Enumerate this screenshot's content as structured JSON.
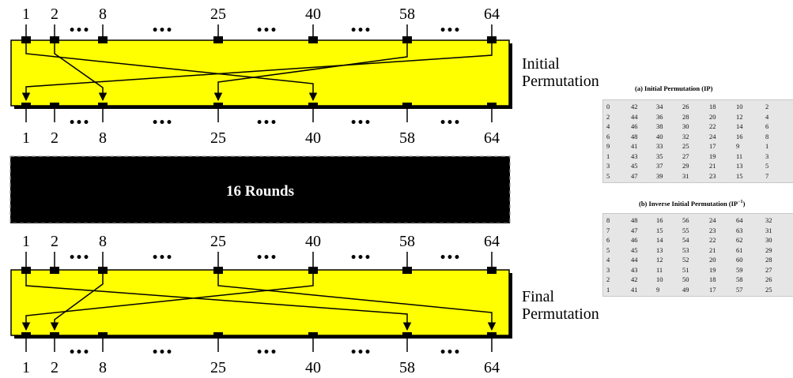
{
  "initial_block": {
    "top_positions": [
      "1",
      "2",
      "8",
      "25",
      "40",
      "58",
      "64"
    ],
    "bottom_positions": [
      "1",
      "2",
      "8",
      "25",
      "40",
      "58",
      "64"
    ],
    "label_line1": "Initial",
    "label_line2": "Permutation",
    "fill_color": "#ffff00"
  },
  "rounds_block": {
    "label": "16 Rounds",
    "fill_color": "#000000"
  },
  "final_block": {
    "top_positions": [
      "1",
      "2",
      "8",
      "25",
      "40",
      "58",
      "64"
    ],
    "bottom_positions": [
      "1",
      "2",
      "8",
      "25",
      "40",
      "58",
      "64"
    ],
    "label_line1": "Final",
    "label_line2": "Permutation",
    "fill_color": "#ffff00"
  },
  "ellipsis": "•••",
  "table_ip": {
    "title": "(a) Initial Permutation (IP)",
    "rows": [
      [
        "0",
        "42",
        "34",
        "26",
        "18",
        "10",
        "2"
      ],
      [
        "2",
        "44",
        "36",
        "28",
        "20",
        "12",
        "4"
      ],
      [
        "4",
        "46",
        "38",
        "30",
        "22",
        "14",
        "6"
      ],
      [
        "6",
        "48",
        "40",
        "32",
        "24",
        "16",
        "8"
      ],
      [
        "9",
        "41",
        "33",
        "25",
        "17",
        "9",
        "1"
      ],
      [
        "1",
        "43",
        "35",
        "27",
        "19",
        "11",
        "3"
      ],
      [
        "3",
        "45",
        "37",
        "29",
        "21",
        "13",
        "5"
      ],
      [
        "5",
        "47",
        "39",
        "31",
        "23",
        "15",
        "7"
      ]
    ]
  },
  "table_ip_inv": {
    "title_main": "(b) Inverse Initial Permutation (IP",
    "title_sup": "−1",
    "title_end": ")",
    "rows": [
      [
        "8",
        "48",
        "16",
        "56",
        "24",
        "64",
        "32"
      ],
      [
        "7",
        "47",
        "15",
        "55",
        "23",
        "63",
        "31"
      ],
      [
        "6",
        "46",
        "14",
        "54",
        "22",
        "62",
        "30"
      ],
      [
        "5",
        "45",
        "13",
        "53",
        "21",
        "61",
        "29"
      ],
      [
        "4",
        "44",
        "12",
        "52",
        "20",
        "60",
        "28"
      ],
      [
        "3",
        "43",
        "11",
        "51",
        "19",
        "59",
        "27"
      ],
      [
        "2",
        "42",
        "10",
        "50",
        "18",
        "58",
        "26"
      ],
      [
        "1",
        "41",
        "9",
        "49",
        "17",
        "57",
        "25"
      ]
    ]
  }
}
